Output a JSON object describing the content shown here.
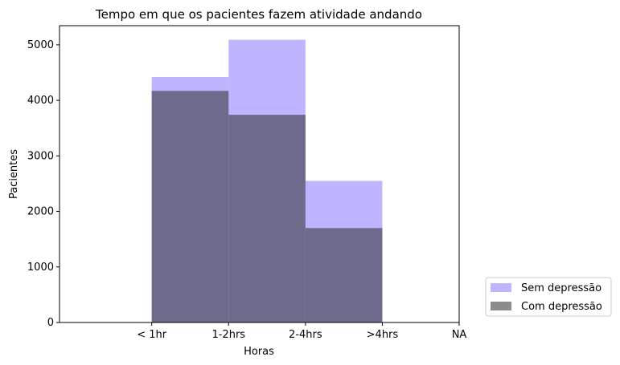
{
  "chart_data": {
    "type": "bar",
    "title": "Tempo em que os pacientes fazem atividade andando",
    "xlabel": "Horas",
    "ylabel": "Pacientes",
    "categories": [
      "< 1hr",
      "1-2hrs",
      "2-4hrs",
      ">4hrs",
      "NA"
    ],
    "bins": [
      {
        "from": "< 1hr",
        "to": "1-2hrs"
      },
      {
        "from": "1-2hrs",
        "to": "2-4hrs"
      },
      {
        "from": "2-4hrs",
        "to": ">4hrs"
      }
    ],
    "series": [
      {
        "name": "Sem depressão",
        "values": [
          4420,
          5090,
          2550
        ],
        "color": "#bfb4ff"
      },
      {
        "name": "Com depressão",
        "values": [
          4170,
          3740,
          1700
        ],
        "color": "#6d6a8c",
        "legend_color": "#8c8c8c"
      }
    ],
    "yticks": [
      0,
      1000,
      2000,
      3000,
      4000,
      5000
    ],
    "ylim": [
      0,
      5345
    ],
    "grid": false,
    "legend_position": "lower-right, outside plot"
  }
}
